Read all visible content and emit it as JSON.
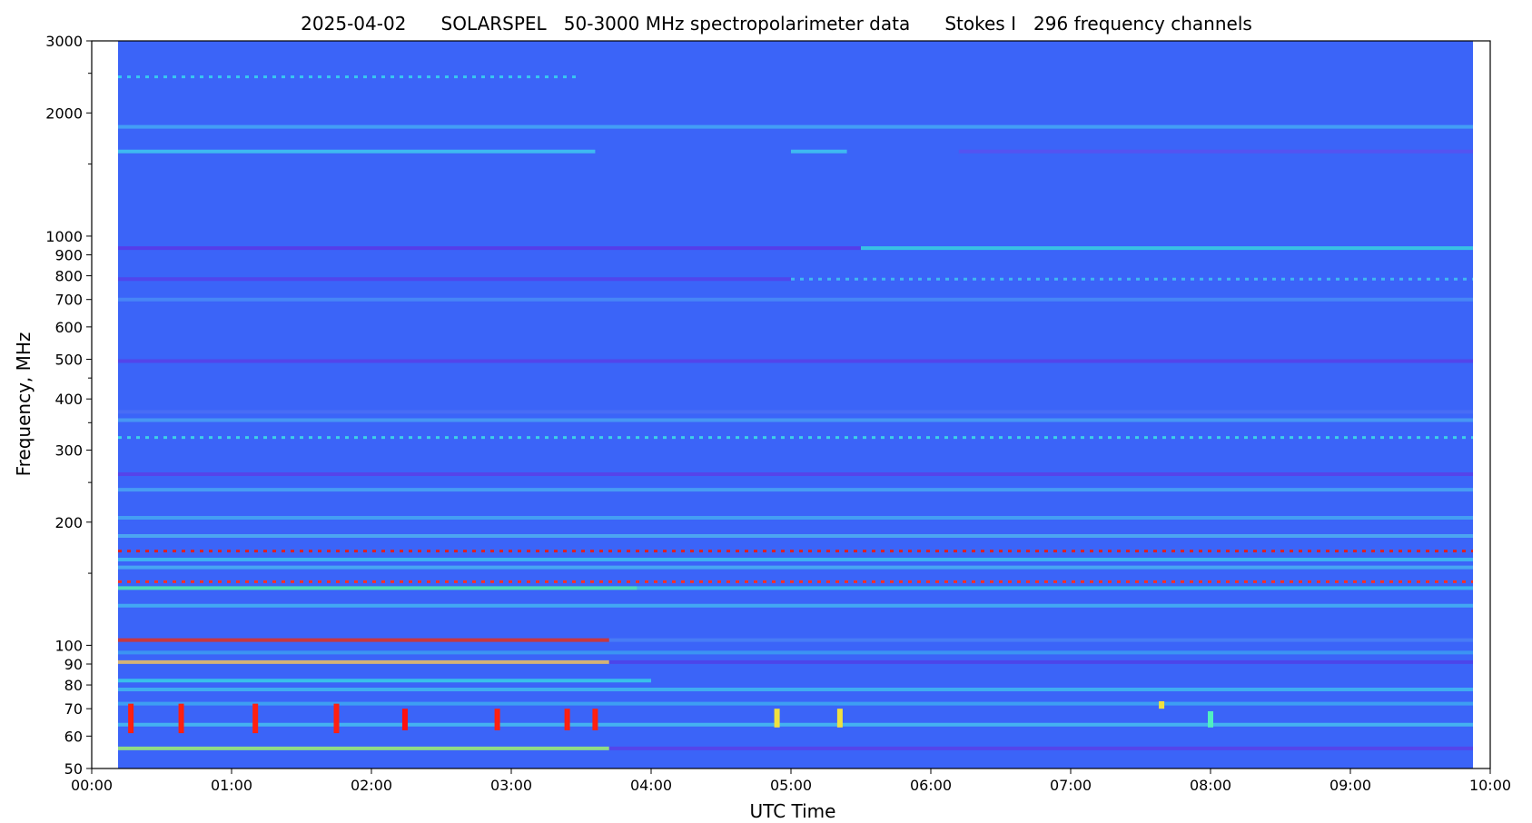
{
  "chart_data": {
    "type": "heatmap",
    "title": "2025-04-02      SOLARSPEL   50-3000 MHz spectropolarimeter data      Stokes I   296 frequency channels",
    "xlabel": "UTC Time",
    "ylabel": "Frequency, MHz",
    "xlim": [
      "00:00",
      "10:00"
    ],
    "data_time_range": [
      "00:00",
      "10:00"
    ],
    "ylim": [
      50,
      3000
    ],
    "yscale": "log",
    "grid": false,
    "legend": "none",
    "colormap": "rainbow",
    "background_color": "#3b64f8",
    "x_ticks": [
      "00:00",
      "01:00",
      "02:00",
      "03:00",
      "04:00",
      "05:00",
      "06:00",
      "07:00",
      "08:00",
      "09:00",
      "10:00"
    ],
    "y_major_ticks": [
      {
        "value": 50,
        "label": "50"
      },
      {
        "value": 60,
        "label": "60"
      },
      {
        "value": 70,
        "label": "70"
      },
      {
        "value": 80,
        "label": "80"
      },
      {
        "value": 90,
        "label": "90"
      },
      {
        "value": 100,
        "label": "100"
      },
      {
        "value": 200,
        "label": "200"
      },
      {
        "value": 300,
        "label": "300"
      },
      {
        "value": 400,
        "label": "400"
      },
      {
        "value": 500,
        "label": "500"
      },
      {
        "value": 600,
        "label": "600"
      },
      {
        "value": 700,
        "label": "700"
      },
      {
        "value": 800,
        "label": "800"
      },
      {
        "value": 900,
        "label": "900"
      },
      {
        "value": 1000,
        "label": "1000"
      },
      {
        "value": 2000,
        "label": "2000"
      },
      {
        "value": 3000,
        "label": "3000"
      }
    ],
    "y_minor_ticks": [
      150,
      250,
      350,
      450,
      1500,
      2500
    ],
    "bands": [
      {
        "f": 2450,
        "t": [
          0.05,
          3.5
        ],
        "color": "#38c8f0",
        "mode": "dots"
      },
      {
        "f": 1850,
        "t": [
          0.1,
          10.0
        ],
        "color": "#45a8f4",
        "mode": "line"
      },
      {
        "f": 1610,
        "t": [
          0.15,
          3.6
        ],
        "color": "#40c8f0",
        "mode": "line"
      },
      {
        "f": 1610,
        "t": [
          5.0,
          5.4
        ],
        "color": "#40c8f0",
        "mode": "line"
      },
      {
        "f": 1610,
        "t": [
          6.2,
          9.9
        ],
        "color": "#5a50f0",
        "mode": "line"
      },
      {
        "f": 935,
        "t": [
          0.0,
          5.5
        ],
        "color": "#5a36e8",
        "mode": "line"
      },
      {
        "f": 935,
        "t": [
          5.5,
          10.0
        ],
        "color": "#38d2e0",
        "mode": "line"
      },
      {
        "f": 785,
        "t": [
          0.0,
          5.0
        ],
        "color": "#5640ea",
        "mode": "line"
      },
      {
        "f": 785,
        "t": [
          5.0,
          10.0
        ],
        "color": "#42b8f0",
        "mode": "dots"
      },
      {
        "f": 700,
        "t": [
          0.0,
          10.0
        ],
        "color": "#4a8cf6",
        "mode": "line"
      },
      {
        "f": 495,
        "t": [
          0.0,
          10.0
        ],
        "color": "#5840e8",
        "mode": "line"
      },
      {
        "f": 372,
        "t": [
          0.0,
          10.0
        ],
        "color": "#4b6ef5",
        "mode": "line"
      },
      {
        "f": 355,
        "t": [
          0.0,
          10.0
        ],
        "color": "#4aa0f2",
        "mode": "line"
      },
      {
        "f": 322,
        "t": [
          0.0,
          10.0
        ],
        "color": "#3ed0e8",
        "mode": "dots"
      },
      {
        "f": 262,
        "t": [
          0.0,
          10.0
        ],
        "color": "#5a3ee8",
        "mode": "line"
      },
      {
        "f": 240,
        "t": [
          0.0,
          10.0
        ],
        "color": "#4aa6f2",
        "mode": "line"
      },
      {
        "f": 205,
        "t": [
          0.0,
          10.0
        ],
        "color": "#46a8f2",
        "mode": "line"
      },
      {
        "f": 185,
        "t": [
          0.0,
          10.0
        ],
        "color": "#50b0f0",
        "mode": "line"
      },
      {
        "f": 170,
        "t": [
          0.0,
          10.0
        ],
        "color": "#e02020",
        "mode": "dots"
      },
      {
        "f": 162,
        "t": [
          0.0,
          10.0
        ],
        "color": "#40c0f0",
        "mode": "line"
      },
      {
        "f": 155,
        "t": [
          0.0,
          10.0
        ],
        "color": "#4ab0f2",
        "mode": "line"
      },
      {
        "f": 143,
        "t": [
          0.0,
          10.0
        ],
        "color": "#ff3020",
        "mode": "dots"
      },
      {
        "f": 138,
        "t": [
          0.15,
          3.9
        ],
        "color": "#50f0b0",
        "mode": "line"
      },
      {
        "f": 138,
        "t": [
          3.9,
          10.0
        ],
        "color": "#3ec0f0",
        "mode": "line"
      },
      {
        "f": 125,
        "t": [
          0.0,
          10.0
        ],
        "color": "#44b4f2",
        "mode": "line"
      },
      {
        "f": 103,
        "t": [
          0.0,
          3.7
        ],
        "color": "#e03020",
        "mode": "line"
      },
      {
        "f": 103,
        "t": [
          3.7,
          10.0
        ],
        "color": "#4a80f4",
        "mode": "line"
      },
      {
        "f": 96,
        "t": [
          0.0,
          10.0
        ],
        "color": "#3c9cf2",
        "mode": "line"
      },
      {
        "f": 91,
        "t": [
          0.0,
          3.7
        ],
        "color": "#f0c060",
        "mode": "line"
      },
      {
        "f": 91,
        "t": [
          3.7,
          10.0
        ],
        "color": "#5040e8",
        "mode": "line"
      },
      {
        "f": 82,
        "t": [
          0.0,
          4.0
        ],
        "color": "#38d0e8",
        "mode": "line"
      },
      {
        "f": 78,
        "t": [
          0.0,
          10.0
        ],
        "color": "#42b8f0",
        "mode": "line"
      },
      {
        "f": 72,
        "t": [
          0.0,
          10.0
        ],
        "color": "#3ea8f2",
        "mode": "line"
      },
      {
        "f": 64,
        "t": [
          0.0,
          10.0
        ],
        "color": "#46c0f0",
        "mode": "line"
      },
      {
        "f": 56,
        "t": [
          0.0,
          3.7
        ],
        "color": "#a0f070",
        "mode": "line"
      },
      {
        "f": 56,
        "t": [
          3.7,
          10.0
        ],
        "color": "#5a40e8",
        "mode": "line"
      }
    ],
    "bursts": [
      {
        "t": 0.28,
        "f_min": 61,
        "f_max": 72,
        "color": "#ff2010"
      },
      {
        "t": 0.64,
        "f_min": 61,
        "f_max": 72,
        "color": "#ff2010"
      },
      {
        "t": 1.17,
        "f_min": 61,
        "f_max": 72,
        "color": "#ff2010"
      },
      {
        "t": 1.75,
        "f_min": 61,
        "f_max": 72,
        "color": "#ff2010"
      },
      {
        "t": 2.24,
        "f_min": 62,
        "f_max": 70,
        "color": "#ff1010"
      },
      {
        "t": 2.9,
        "f_min": 62,
        "f_max": 70,
        "color": "#ff2010"
      },
      {
        "t": 3.4,
        "f_min": 62,
        "f_max": 70,
        "color": "#ff2010"
      },
      {
        "t": 3.6,
        "f_min": 62,
        "f_max": 70,
        "color": "#ff2010"
      },
      {
        "t": 4.9,
        "f_min": 63,
        "f_max": 70,
        "color": "#f0e040"
      },
      {
        "t": 5.35,
        "f_min": 63,
        "f_max": 70,
        "color": "#f0e040"
      },
      {
        "t": 7.65,
        "f_min": 70,
        "f_max": 73,
        "color": "#f0e040"
      },
      {
        "t": 8.0,
        "f_min": 63,
        "f_max": 69,
        "color": "#50f0c0"
      }
    ]
  }
}
